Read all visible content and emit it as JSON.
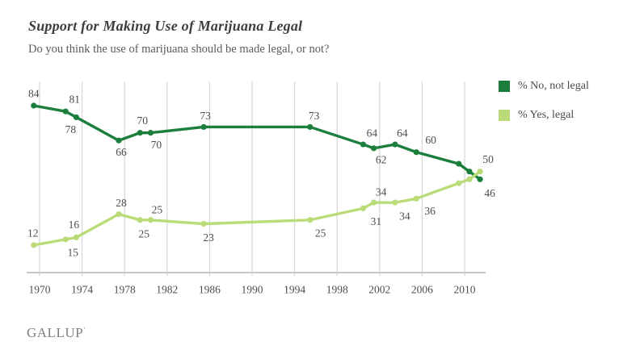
{
  "header": {
    "title": "Support for Making Use of Marijuana Legal",
    "subtitle": "Do you think the use of marijuana should be made legal, or not?"
  },
  "footer": {
    "brand": "GALLUP",
    "mark": "’"
  },
  "colors": {
    "no_series": "#1b7e3c",
    "yes_series": "#b9dc78",
    "gridline": "#d9d9d9",
    "axis_line": "#c6c6c6",
    "label_text": "#4d4d4d"
  },
  "chart_data": {
    "type": "line",
    "title": "Support for Making Use of Marijuana Legal",
    "subtitle": "Do you think the use of marijuana should be made legal, or not?",
    "xlabel": "",
    "ylabel": "",
    "x_ticks": [
      1970,
      1974,
      1978,
      1982,
      1986,
      1990,
      1994,
      1998,
      2002,
      2006,
      2010
    ],
    "ylim": [
      0,
      95
    ],
    "grid": "vertical-only",
    "legend_position": "top-right",
    "series": [
      {
        "name": "% No, not legal",
        "color": "#1b7e3c",
        "points": [
          {
            "year": 1969,
            "value": 84,
            "label": "84",
            "dx": 0,
            "dy": -15
          },
          {
            "year": 1972,
            "value": 81,
            "label": "81",
            "dx": 11,
            "dy": -15
          },
          {
            "year": 1973,
            "value": 78,
            "label": "78",
            "dx": -7,
            "dy": 15
          },
          {
            "year": 1977,
            "value": 66,
            "label": "66",
            "dx": 3,
            "dy": 14
          },
          {
            "year": 1979,
            "value": 70,
            "label": "70",
            "dx": 3,
            "dy": -15
          },
          {
            "year": 1980,
            "value": 70,
            "label": "70",
            "dx": 7,
            "dy": 15
          },
          {
            "year": 1985,
            "value": 73,
            "label": "73",
            "dx": 2,
            "dy": -14
          },
          {
            "year": 1995,
            "value": 73,
            "label": "73",
            "dx": 5,
            "dy": -14
          },
          {
            "year": 2000,
            "value": 64,
            "label": "64",
            "dx": 11,
            "dy": -14
          },
          {
            "year": 2001,
            "value": 62,
            "label": "62",
            "dx": 9,
            "dy": 14
          },
          {
            "year": 2003,
            "value": 64,
            "label": "64",
            "dx": 9,
            "dy": -14
          },
          {
            "year": 2005,
            "value": 60,
            "label": "60",
            "dx": 18,
            "dy": -15
          },
          {
            "year": 2009,
            "value": 54,
            "label": null,
            "dx": 0,
            "dy": 0
          },
          {
            "year": 2010,
            "value": 50,
            "label": null,
            "dx": 0,
            "dy": 0
          },
          {
            "year": 2011,
            "value": 46,
            "label": "46",
            "dx": 12,
            "dy": 17
          }
        ]
      },
      {
        "name": "% Yes, legal",
        "color": "#b9dc78",
        "points": [
          {
            "year": 1969,
            "value": 12,
            "label": "12",
            "dx": -1,
            "dy": -15
          },
          {
            "year": 1972,
            "value": 15,
            "label": "15",
            "dx": 9,
            "dy": 16
          },
          {
            "year": 1973,
            "value": 16,
            "label": "16",
            "dx": -3,
            "dy": -16
          },
          {
            "year": 1977,
            "value": 28,
            "label": "28",
            "dx": 3,
            "dy": -14
          },
          {
            "year": 1979,
            "value": 25,
            "label": "25",
            "dx": 5,
            "dy": 17
          },
          {
            "year": 1980,
            "value": 25,
            "label": "25",
            "dx": 8,
            "dy": -13
          },
          {
            "year": 1985,
            "value": 23,
            "label": "23",
            "dx": 6,
            "dy": 17
          },
          {
            "year": 1995,
            "value": 25,
            "label": "25",
            "dx": 13,
            "dy": 16
          },
          {
            "year": 2000,
            "value": 31,
            "label": "31",
            "dx": 16,
            "dy": 16
          },
          {
            "year": 2001,
            "value": 34,
            "label": "34",
            "dx": 9,
            "dy": -13
          },
          {
            "year": 2003,
            "value": 34,
            "label": "34",
            "dx": 12,
            "dy": 17
          },
          {
            "year": 2005,
            "value": 36,
            "label": "36",
            "dx": 17,
            "dy": 15
          },
          {
            "year": 2009,
            "value": 44,
            "label": null,
            "dx": 0,
            "dy": 0
          },
          {
            "year": 2010,
            "value": 46,
            "label": null,
            "dx": 0,
            "dy": 0
          },
          {
            "year": 2011,
            "value": 50,
            "label": "50",
            "dx": 10,
            "dy": -15
          }
        ]
      }
    ]
  }
}
